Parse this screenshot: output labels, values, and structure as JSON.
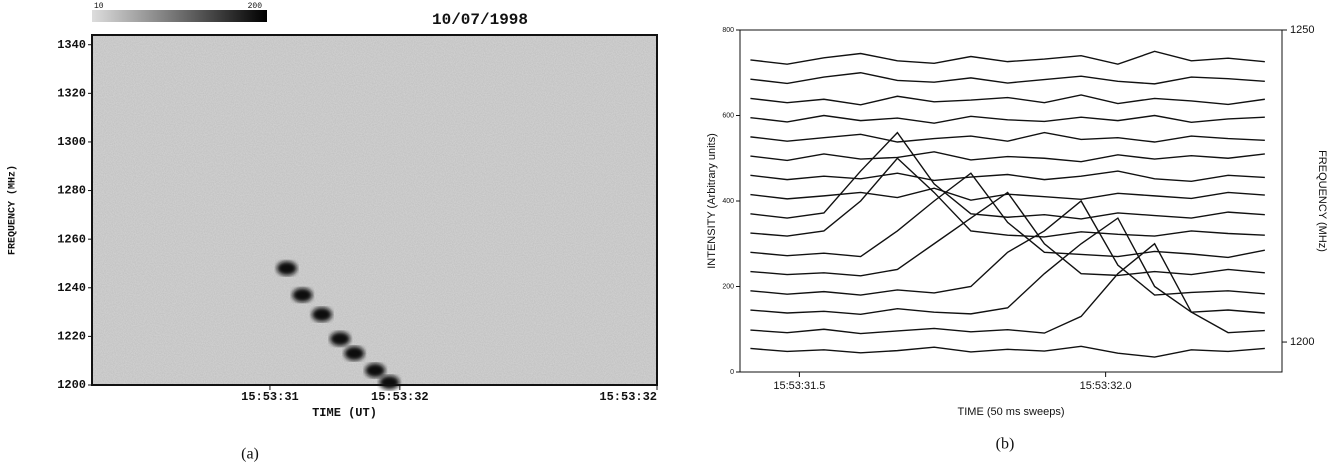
{
  "chart_data": [
    {
      "type": "spectrogram",
      "title": "10/07/1998",
      "xlabel": "TIME (UT)",
      "ylabel": "FREQUENCY (MHz)",
      "caption": "(a)",
      "colorbar_ticks": [
        10,
        200
      ],
      "xlim": [
        57209.63,
        57213.98
      ],
      "xticks": [
        {
          "value": 57211,
          "label": "15:53:31"
        },
        {
          "value": 57212,
          "label": "15:53:32"
        },
        {
          "value": 57213.98,
          "label": "15:53:32"
        }
      ],
      "ylim": [
        1200,
        1344
      ],
      "yticks": [
        1200,
        1220,
        1240,
        1260,
        1280,
        1300,
        1320,
        1340
      ],
      "x": [
        57211.13,
        57211.25,
        57211.4,
        57211.54,
        57211.65,
        57211.81,
        57211.92
      ],
      "values": [
        1248,
        1237,
        1229,
        1219,
        1213,
        1206,
        1201
      ],
      "color": "#111111"
    },
    {
      "type": "line",
      "xlabel": "TIME (50 ms sweeps)",
      "ylabel": "INTENSITY (Arbitrary units)",
      "y2label": "FREQUENCY (MHz)",
      "caption": "(b)",
      "color": "#111111",
      "xlim": [
        57211.403,
        57212.288
      ],
      "xticks": [
        {
          "value": 57211.5,
          "label": "15:53:31.5"
        },
        {
          "value": 57212.0,
          "label": "15:53:32.0"
        }
      ],
      "ylim": [
        0,
        800
      ],
      "yticks": [
        0,
        200,
        400,
        600,
        800
      ],
      "y2lim": [
        1195.2,
        1250
      ],
      "y2ticks": [
        1200,
        1250
      ],
      "x": [
        57211.42,
        57211.48,
        57211.54,
        57211.6,
        57211.66,
        57211.72,
        57211.78,
        57211.84,
        57211.9,
        57211.96,
        57212.02,
        57212.08,
        57212.14,
        57212.2,
        57212.26
      ],
      "series": [
        {
          "values": [
            55,
            48,
            52,
            45,
            50,
            58,
            47,
            53,
            49,
            60,
            44,
            35,
            52,
            48,
            55
          ]
        },
        {
          "values": [
            98,
            92,
            100,
            90,
            96,
            102,
            94,
            99,
            91,
            130,
            230,
            300,
            140,
            92,
            97
          ]
        },
        {
          "values": [
            145,
            138,
            142,
            135,
            148,
            140,
            136,
            150,
            230,
            300,
            360,
            200,
            140,
            145,
            138
          ]
        },
        {
          "values": [
            190,
            182,
            188,
            180,
            192,
            185,
            200,
            280,
            330,
            400,
            250,
            180,
            186,
            190,
            183
          ]
        },
        {
          "values": [
            235,
            228,
            232,
            225,
            240,
            300,
            360,
            420,
            300,
            230,
            226,
            235,
            228,
            240,
            232
          ]
        },
        {
          "values": [
            280,
            272,
            278,
            270,
            330,
            400,
            465,
            350,
            280,
            275,
            270,
            282,
            276,
            268,
            285
          ]
        },
        {
          "values": [
            325,
            318,
            330,
            400,
            500,
            420,
            330,
            320,
            316,
            328,
            322,
            318,
            330,
            324,
            320
          ]
        },
        {
          "values": [
            370,
            360,
            372,
            470,
            560,
            440,
            370,
            362,
            368,
            358,
            372,
            366,
            360,
            374,
            368
          ]
        },
        {
          "values": [
            415,
            405,
            412,
            420,
            408,
            430,
            402,
            416,
            410,
            404,
            418,
            412,
            406,
            420,
            414
          ]
        },
        {
          "values": [
            460,
            450,
            458,
            452,
            465,
            448,
            456,
            462,
            450,
            458,
            470,
            452,
            446,
            460,
            455
          ]
        },
        {
          "values": [
            505,
            495,
            510,
            498,
            502,
            515,
            496,
            504,
            500,
            492,
            508,
            498,
            506,
            500,
            510
          ]
        },
        {
          "values": [
            550,
            540,
            548,
            556,
            538,
            546,
            552,
            540,
            560,
            544,
            548,
            538,
            552,
            546,
            542
          ]
        },
        {
          "values": [
            595,
            585,
            600,
            588,
            594,
            582,
            598,
            590,
            586,
            596,
            588,
            600,
            584,
            592,
            596
          ]
        },
        {
          "values": [
            640,
            630,
            638,
            625,
            645,
            632,
            636,
            642,
            630,
            648,
            628,
            640,
            634,
            626,
            638
          ]
        },
        {
          "values": [
            685,
            675,
            690,
            700,
            682,
            678,
            688,
            676,
            684,
            692,
            680,
            674,
            690,
            686,
            680
          ]
        },
        {
          "values": [
            730,
            720,
            735,
            745,
            728,
            722,
            738,
            726,
            732,
            740,
            720,
            750,
            728,
            734,
            726
          ]
        }
      ]
    }
  ]
}
